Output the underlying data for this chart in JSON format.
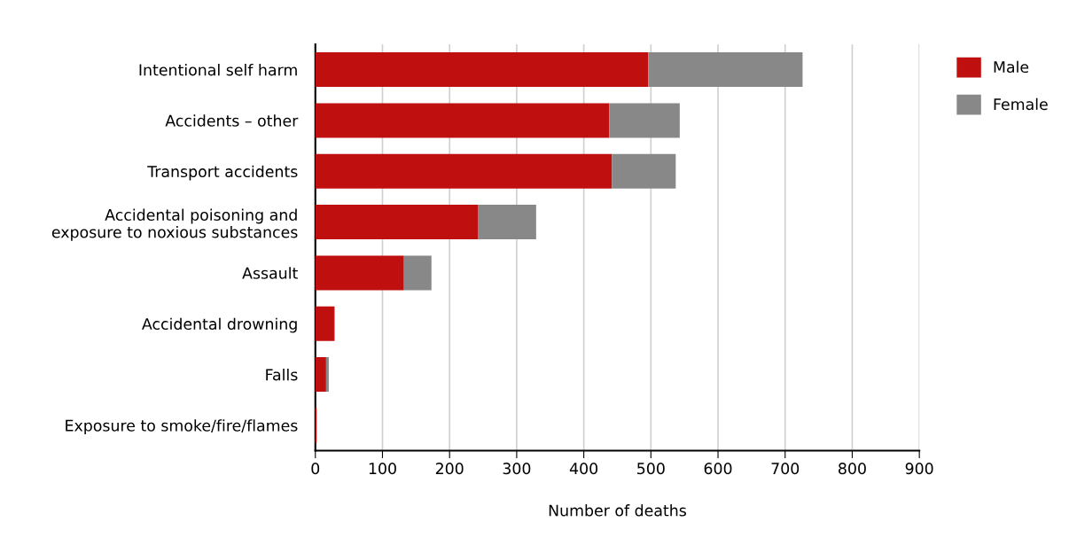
{
  "chart_data": {
    "type": "bar",
    "orientation": "horizontal",
    "stacked": true,
    "xlabel": "Number of deaths",
    "categories": [
      "Intentional self harm",
      "Accidents – other",
      "Transport accidents",
      "Accidental poisoning and\nexposure to noxious substances",
      "Assault",
      "Accidental drowning",
      "Falls",
      "Exposure to smoke/fire/flames"
    ],
    "series": [
      {
        "name": "Male",
        "color": "#c00f0f",
        "values": [
          496,
          438,
          442,
          242,
          132,
          28,
          16,
          2
        ]
      },
      {
        "name": "Female",
        "color": "#888888",
        "values": [
          230,
          105,
          95,
          87,
          41,
          1,
          4,
          0
        ]
      }
    ],
    "xlim": [
      0,
      900
    ],
    "xticks": [
      0,
      100,
      200,
      300,
      400,
      500,
      600,
      700,
      800,
      900
    ],
    "grid": "x",
    "legend": "top right"
  }
}
